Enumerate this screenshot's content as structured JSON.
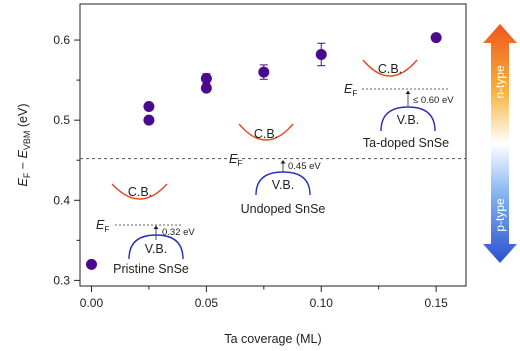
{
  "chart_data": {
    "type": "scatter",
    "title": "",
    "xlabel": "Ta coverage (ML)",
    "ylabel_parts": {
      "E": "E",
      "F": "F",
      "minus": " − ",
      "E2": "E",
      "VBM": "VBM",
      "unit": " (eV)"
    },
    "xlim": [
      -0.005,
      0.163
    ],
    "ylim": [
      0.293,
      0.645
    ],
    "xticks": [
      0.0,
      0.05,
      0.1,
      0.15
    ],
    "xtick_labels": [
      "0.00",
      "0.05",
      "0.10",
      "0.15"
    ],
    "xminor": [
      0.025,
      0.075,
      0.125
    ],
    "yticks": [
      0.3,
      0.4,
      0.5,
      0.6
    ],
    "ytick_labels": [
      "0.3",
      "0.4",
      "0.5",
      "0.6"
    ],
    "yminor": [
      0.35,
      0.45,
      0.55
    ],
    "grid": false,
    "marker_color": "#4b0a8e",
    "points": [
      {
        "x": 0.0,
        "y": 0.32,
        "err": 0
      },
      {
        "x": 0.025,
        "y": 0.517,
        "err": 0
      },
      {
        "x": 0.025,
        "y": 0.5,
        "err": 0
      },
      {
        "x": 0.05,
        "y": 0.552,
        "err": 0.006
      },
      {
        "x": 0.05,
        "y": 0.54,
        "err": 0
      },
      {
        "x": 0.075,
        "y": 0.56,
        "err": 0.009
      },
      {
        "x": 0.1,
        "y": 0.582,
        "err": 0.014
      },
      {
        "x": 0.15,
        "y": 0.603,
        "err": 0
      }
    ],
    "reference_line_y": 0.452,
    "reference_label": {
      "E": "E",
      "F": "F"
    },
    "insets": [
      {
        "material": "Pristine SnSe",
        "cb": "C.B.",
        "vb": "V.B.",
        "ef": "E",
        "ef_sub": "F",
        "gap": "0.32 eV"
      },
      {
        "material": "Undoped SnSe",
        "cb": "C.B.",
        "vb": "V.B.",
        "gap": "0.45 eV"
      },
      {
        "material": "Ta-doped SnSe",
        "cb": "C.B.",
        "vb": "V.B.",
        "ef": "E",
        "ef_sub": "F",
        "gap": "≤ 0.60 eV"
      }
    ],
    "colors": {
      "cb": "#e8461f",
      "vb": "#2a2fb8",
      "ref_line": "#555555"
    },
    "type_arrow": {
      "top": "n-type",
      "bottom": "p-type",
      "colors": [
        "#f0561e",
        "#f7b33a",
        "#ffffff",
        "#7fb2f0",
        "#2d4fd0"
      ]
    }
  }
}
